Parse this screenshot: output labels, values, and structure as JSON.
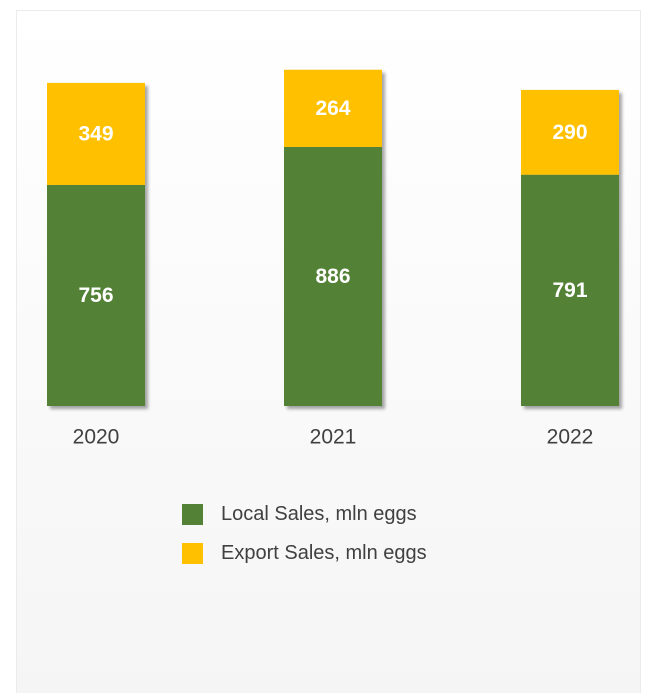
{
  "chart_data": {
    "type": "bar",
    "stacked": true,
    "categories": [
      "2020",
      "2021",
      "2022"
    ],
    "series": [
      {
        "name": "Local Sales, mln eggs",
        "values": [
          756,
          886,
          791
        ],
        "color": "#538135"
      },
      {
        "name": "Export Sales, mln eggs",
        "values": [
          349,
          264,
          290
        ],
        "color": "#ffc000"
      }
    ],
    "ylim": [
      0,
      1150
    ],
    "grid": false,
    "legend_position": "bottom"
  }
}
